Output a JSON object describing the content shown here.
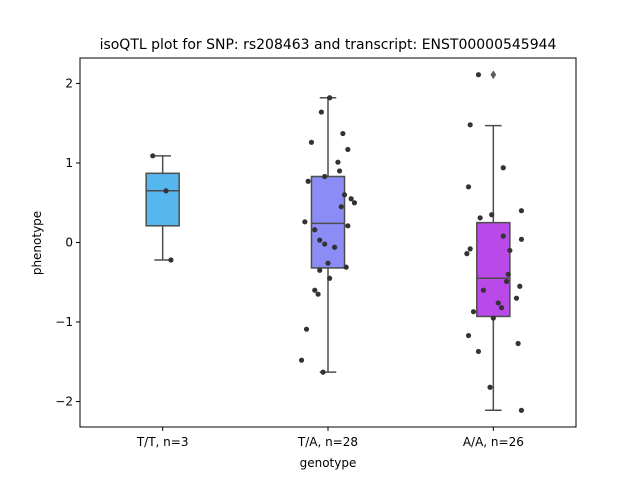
{
  "chart_data": {
    "type": "box",
    "title": "isoQTL plot for SNP: rs208463 and transcript: ENST00000545944",
    "xlabel": "genotype",
    "ylabel": "phenotype",
    "ylim": [
      -2.32,
      2.32
    ],
    "yticks": [
      -2,
      -1,
      0,
      1,
      2
    ],
    "grid": false,
    "colors": {
      "frame": "#000000",
      "whisker": "#4d4d4d",
      "point": "#333333",
      "outlier": "#5e5e5e"
    },
    "categories": [
      {
        "label": "T/T, n=3",
        "color": "#56b6ee",
        "box": {
          "whisker_low": -0.22,
          "q1": 0.21,
          "median": 0.65,
          "q3": 0.87,
          "whisker_high": 1.09
        },
        "outliers": [],
        "points": [
          {
            "dx": -0.06,
            "y": 1.09
          },
          {
            "dx": 0.02,
            "y": 0.65
          },
          {
            "dx": 0.05,
            "y": -0.22
          }
        ]
      },
      {
        "label": "T/A, n=28",
        "color": "#8c8cf6",
        "box": {
          "whisker_low": -1.63,
          "q1": -0.32,
          "median": 0.24,
          "q3": 0.83,
          "whisker_high": 1.82
        },
        "outliers": [],
        "points": [
          {
            "dx": 0.01,
            "y": 1.82
          },
          {
            "dx": -0.04,
            "y": 1.64
          },
          {
            "dx": 0.09,
            "y": 1.37
          },
          {
            "dx": -0.1,
            "y": 1.26
          },
          {
            "dx": 0.12,
            "y": 1.17
          },
          {
            "dx": 0.06,
            "y": 1.01
          },
          {
            "dx": 0.07,
            "y": 0.9
          },
          {
            "dx": -0.02,
            "y": 0.83
          },
          {
            "dx": -0.12,
            "y": 0.77
          },
          {
            "dx": 0.1,
            "y": 0.6
          },
          {
            "dx": 0.14,
            "y": 0.55
          },
          {
            "dx": 0.16,
            "y": 0.5
          },
          {
            "dx": 0.08,
            "y": 0.45
          },
          {
            "dx": -0.14,
            "y": 0.26
          },
          {
            "dx": 0.12,
            "y": 0.21
          },
          {
            "dx": -0.08,
            "y": 0.16
          },
          {
            "dx": -0.05,
            "y": 0.03
          },
          {
            "dx": -0.02,
            "y": -0.02
          },
          {
            "dx": 0.04,
            "y": -0.06
          },
          {
            "dx": 0.0,
            "y": -0.26
          },
          {
            "dx": 0.11,
            "y": -0.31
          },
          {
            "dx": -0.05,
            "y": -0.35
          },
          {
            "dx": 0.01,
            "y": -0.45
          },
          {
            "dx": -0.08,
            "y": -0.6
          },
          {
            "dx": -0.06,
            "y": -0.65
          },
          {
            "dx": -0.13,
            "y": -1.09
          },
          {
            "dx": -0.16,
            "y": -1.48
          },
          {
            "dx": -0.03,
            "y": -1.63
          }
        ]
      },
      {
        "label": "A/A, n=26",
        "color": "#b94ae9",
        "box": {
          "whisker_low": -2.11,
          "q1": -0.93,
          "median": -0.45,
          "q3": 0.25,
          "whisker_high": 1.47
        },
        "outliers": [
          2.11
        ],
        "points": [
          {
            "dx": -0.09,
            "y": 2.11
          },
          {
            "dx": -0.14,
            "y": 1.48
          },
          {
            "dx": 0.06,
            "y": 0.94
          },
          {
            "dx": -0.15,
            "y": 0.7
          },
          {
            "dx": 0.17,
            "y": 0.4
          },
          {
            "dx": -0.01,
            "y": 0.35
          },
          {
            "dx": -0.08,
            "y": 0.31
          },
          {
            "dx": 0.06,
            "y": 0.08
          },
          {
            "dx": 0.17,
            "y": 0.04
          },
          {
            "dx": -0.14,
            "y": -0.08
          },
          {
            "dx": -0.16,
            "y": -0.14
          },
          {
            "dx": 0.09,
            "y": -0.4
          },
          {
            "dx": 0.08,
            "y": -0.49
          },
          {
            "dx": 0.16,
            "y": -0.55
          },
          {
            "dx": -0.06,
            "y": -0.6
          },
          {
            "dx": 0.14,
            "y": -0.7
          },
          {
            "dx": 0.03,
            "y": -0.76
          },
          {
            "dx": 0.05,
            "y": -0.82
          },
          {
            "dx": -0.12,
            "y": -0.87
          },
          {
            "dx": 0.0,
            "y": -0.95
          },
          {
            "dx": -0.15,
            "y": -1.17
          },
          {
            "dx": 0.15,
            "y": -1.27
          },
          {
            "dx": -0.09,
            "y": -1.37
          },
          {
            "dx": -0.02,
            "y": -1.82
          },
          {
            "dx": 0.17,
            "y": -2.11
          },
          {
            "dx": 0.1,
            "y": -0.1
          }
        ]
      }
    ]
  }
}
